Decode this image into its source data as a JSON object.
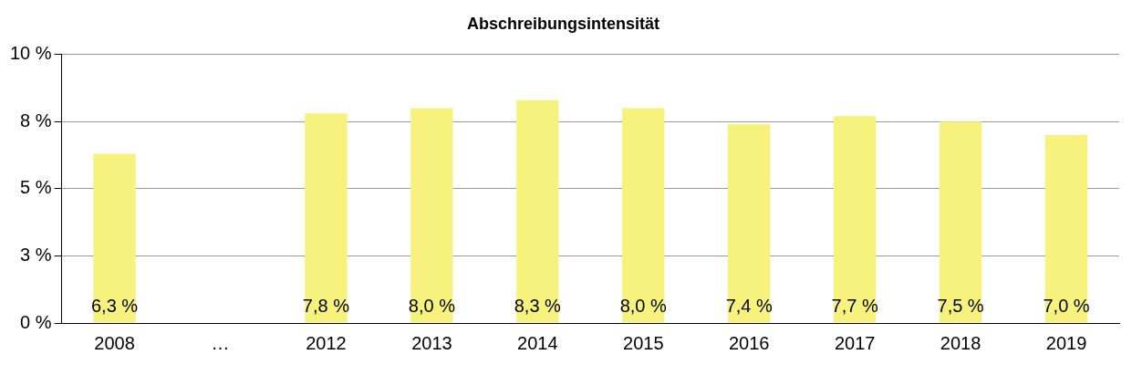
{
  "chart_data": {
    "type": "bar",
    "title": "Abschreibungsintensität",
    "categories": [
      "2008",
      "…",
      "2012",
      "2013",
      "2014",
      "2015",
      "2016",
      "2017",
      "2018",
      "2019"
    ],
    "values": [
      6.3,
      null,
      7.8,
      8.0,
      8.3,
      8.0,
      7.4,
      7.7,
      7.5,
      7.0
    ],
    "value_labels": [
      "6,3 %",
      null,
      "7,8 %",
      "8,0 %",
      "8,3 %",
      "8,0 %",
      "7,4 %",
      "7,7 %",
      "7,5 %",
      "7,0 %"
    ],
    "color": "#f7f27e",
    "ylim": [
      0,
      10
    ],
    "yticks": [
      {
        "value": 0,
        "label": "0 %"
      },
      {
        "value": 2.5,
        "label": "3 %"
      },
      {
        "value": 5,
        "label": "5 %"
      },
      {
        "value": 7.5,
        "label": "8 %"
      },
      {
        "value": 10,
        "label": "10 %"
      }
    ],
    "grid": "y",
    "legend": false
  }
}
